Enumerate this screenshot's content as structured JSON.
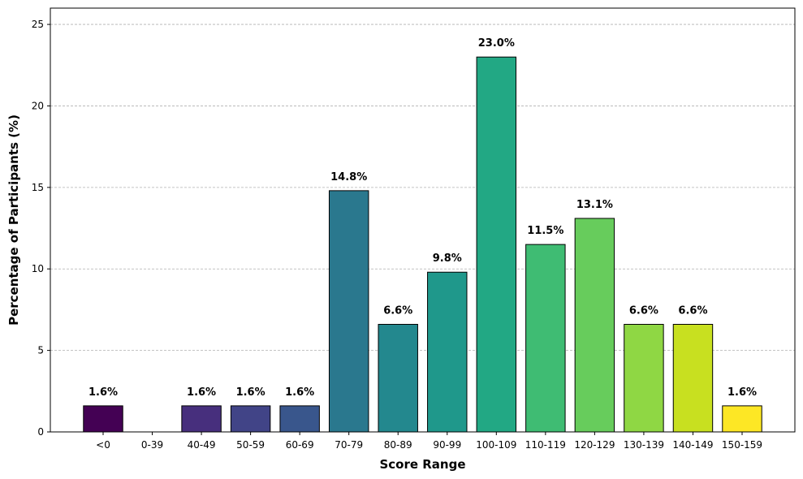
{
  "chart_data": {
    "type": "bar",
    "title": "",
    "xlabel": "Score Range",
    "ylabel": "Percentage of Participants (%)",
    "categories": [
      "<0",
      "0-39",
      "40-49",
      "50-59",
      "60-69",
      "70-79",
      "80-89",
      "90-99",
      "100-109",
      "110-119",
      "120-129",
      "130-139",
      "140-149",
      "150-159"
    ],
    "values": [
      1.6,
      0.0,
      1.6,
      1.6,
      1.6,
      14.8,
      6.6,
      9.8,
      23.0,
      11.5,
      13.1,
      6.6,
      6.6,
      1.6
    ],
    "data_labels": [
      "1.6%",
      "",
      "1.6%",
      "1.6%",
      "1.6%",
      "14.8%",
      "6.6%",
      "9.8%",
      "23.0%",
      "11.5%",
      "13.1%",
      "6.6%",
      "6.6%",
      "1.6%"
    ],
    "colors": [
      "#440154",
      "#481a6c",
      "#472f7d",
      "#414487",
      "#39568c",
      "#2a788e",
      "#23888e",
      "#1f988b",
      "#22a884",
      "#3fbc73",
      "#67cc5c",
      "#8fd744",
      "#c8e020",
      "#fde725"
    ],
    "ylim": [
      0,
      26
    ],
    "yticks": [
      0,
      5,
      10,
      15,
      20,
      25
    ],
    "ytick_labels": [
      "0",
      "5",
      "10",
      "15",
      "20",
      "25"
    ],
    "grid": "y-dashed",
    "bar_edge_color": "#000000"
  }
}
